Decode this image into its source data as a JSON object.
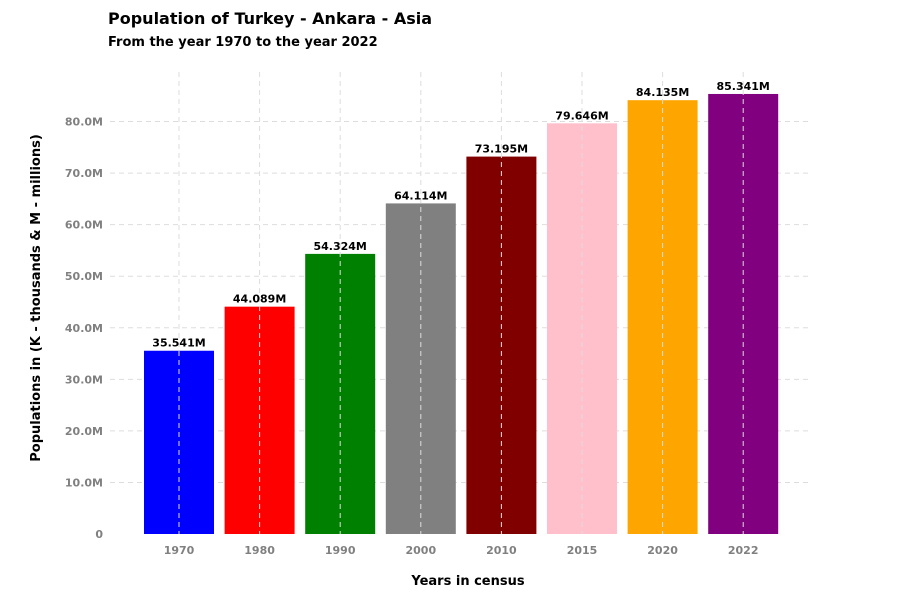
{
  "chart_data": {
    "type": "bar",
    "title": "Population of Turkey - Ankara - Asia",
    "subtitle": "From the year 1970 to the year 2022",
    "xlabel": "Years in census",
    "ylabel": "Populations in (K - thousands & M - millions)",
    "categories": [
      "1970",
      "1980",
      "1990",
      "2000",
      "2010",
      "2015",
      "2020",
      "2022"
    ],
    "values": [
      35.541,
      44.089,
      54.324,
      64.114,
      73.195,
      79.646,
      84.135,
      85.341
    ],
    "data_labels": [
      "35.541M",
      "44.089M",
      "54.324M",
      "64.114M",
      "73.195M",
      "79.646M",
      "84.135M",
      "85.341M"
    ],
    "colors": [
      "#0000ff",
      "#ff0000",
      "#008000",
      "#808080",
      "#800000",
      "#ffc0cb",
      "#ffa500",
      "#800080"
    ],
    "unit": "millions",
    "ylim": [
      0,
      89.6
    ],
    "yticks": [
      0,
      10,
      20,
      30,
      40,
      50,
      60,
      70,
      80
    ],
    "ytick_labels": [
      "0",
      "10.0M",
      "20.0M",
      "30.0M",
      "40.0M",
      "50.0M",
      "60.0M",
      "70.0M",
      "80.0M"
    ],
    "grid": true,
    "legend": "none"
  }
}
